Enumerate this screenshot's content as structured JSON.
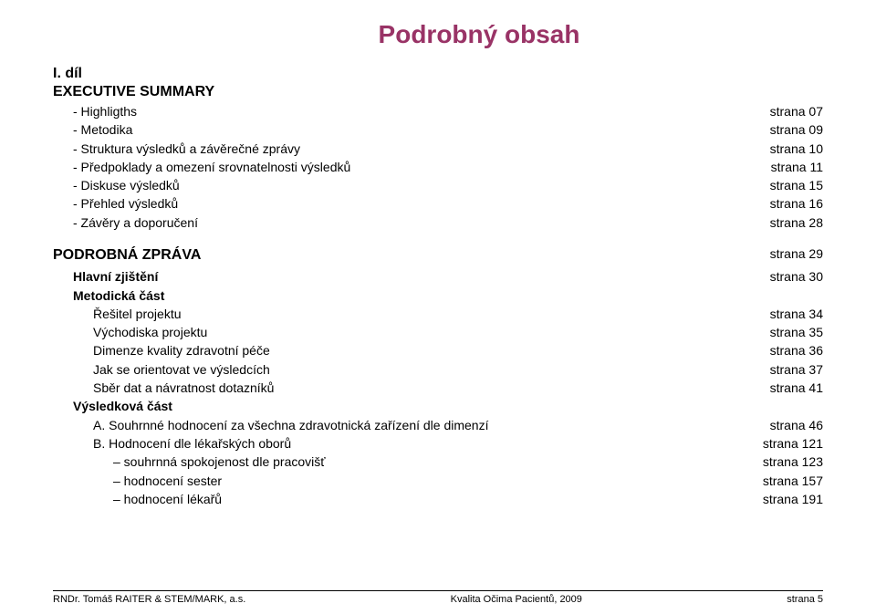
{
  "colors": {
    "title": "#993366",
    "text": "#000000",
    "background": "#ffffff",
    "rule": "#000000"
  },
  "typography": {
    "title_fontsize": 28,
    "heading_fontsize": 16,
    "body_fontsize": 14,
    "footer_fontsize": 11,
    "font_family": "Verdana"
  },
  "title": "Podrobný obsah",
  "part_heading": "I. díl",
  "exec_heading": "EXECUTIVE SUMMARY",
  "exec": [
    {
      "label": "- Highligths",
      "page": "strana 07"
    },
    {
      "label": "- Metodika",
      "page": "strana 09"
    },
    {
      "label": "- Struktura výsledků a závěrečné zprávy",
      "page": "strana 10"
    },
    {
      "label": "- Předpoklady a omezení srovnatelnosti výsledků",
      "page": "strana 11"
    },
    {
      "label": "- Diskuse výsledků",
      "page": "strana 15"
    },
    {
      "label": "- Přehled výsledků",
      "page": "strana 16"
    },
    {
      "label": "- Závěry a doporučení",
      "page": "strana 28"
    }
  ],
  "report_heading": {
    "label": "PODROBNÁ ZPRÁVA",
    "page": "strana 29"
  },
  "main_findings": {
    "label": "Hlavní zjištění",
    "page": "strana 30"
  },
  "method_heading": "Metodická část",
  "method": [
    {
      "label": "Řešitel projektu",
      "page": "strana 34"
    },
    {
      "label": "Východiska projektu",
      "page": "strana 35"
    },
    {
      "label": "Dimenze kvality zdravotní péče",
      "page": "strana 36"
    },
    {
      "label": "Jak se orientovat ve výsledcích",
      "page": "strana 37"
    },
    {
      "label": "Sběr dat a návratnost dotazníků",
      "page": "strana 41"
    }
  ],
  "results_heading": "Výsledková část",
  "results": [
    {
      "label": "A. Souhrnné hodnocení za všechna zdravotnická zařízení dle dimenzí",
      "page": "strana 46"
    },
    {
      "label": "B. Hodnocení dle lékařských oborů",
      "page": "strana 121"
    }
  ],
  "sub_results": [
    {
      "label": "– souhrnná spokojenost dle pracovišť",
      "page": "strana 123"
    },
    {
      "label": "– hodnocení sester",
      "page": "strana 157"
    },
    {
      "label": "– hodnocení lékařů",
      "page": "strana 191"
    }
  ],
  "footer": {
    "left": "RNDr. Tomáš RAITER & STEM/MARK, a.s.",
    "center": "Kvalita Očima Pacientů, 2009",
    "right": "strana 5"
  }
}
